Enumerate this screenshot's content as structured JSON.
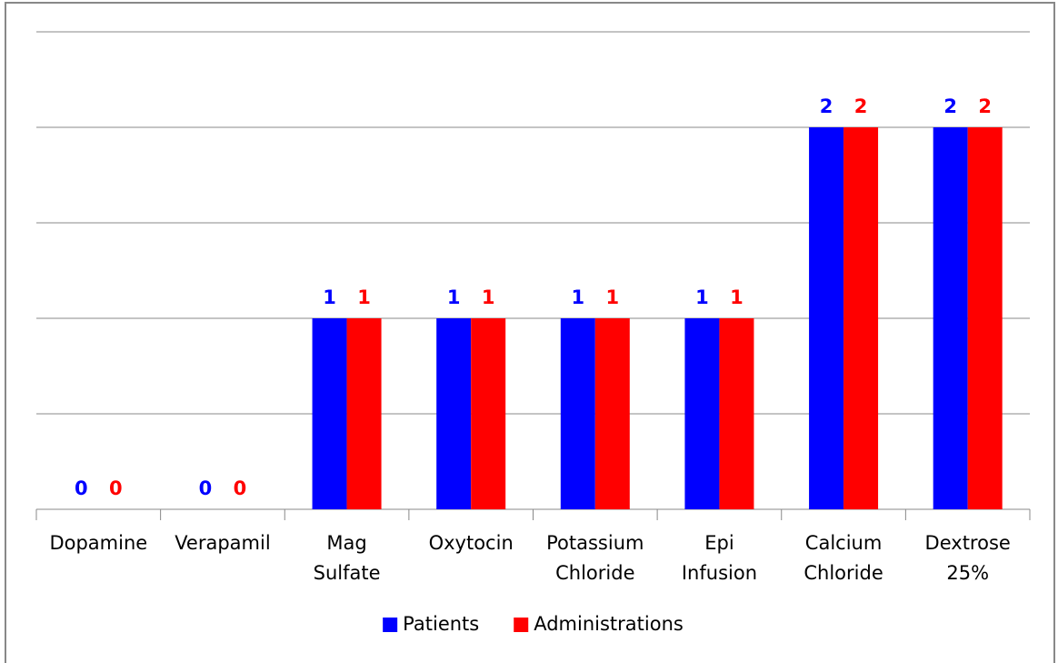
{
  "chart_data": {
    "type": "bar",
    "categories": [
      "Dopamine",
      "Verapamil",
      "Mag Sulfate",
      "Oxytocin",
      "Potassium Chloride",
      "Epi Infusion",
      "Calcium Chloride",
      "Dextrose 25%"
    ],
    "series": [
      {
        "name": "Patients",
        "color": "#0000ff",
        "values": [
          0,
          0,
          1,
          1,
          1,
          1,
          2,
          2
        ]
      },
      {
        "name": "Administrations",
        "color": "#ff0000",
        "values": [
          0,
          0,
          1,
          1,
          1,
          1,
          2,
          2
        ]
      }
    ],
    "ylim": [
      0,
      2.5
    ],
    "yticks": [
      0,
      0.5,
      1,
      1.5,
      2,
      2.5
    ],
    "grid": true,
    "legend": "bottom"
  }
}
